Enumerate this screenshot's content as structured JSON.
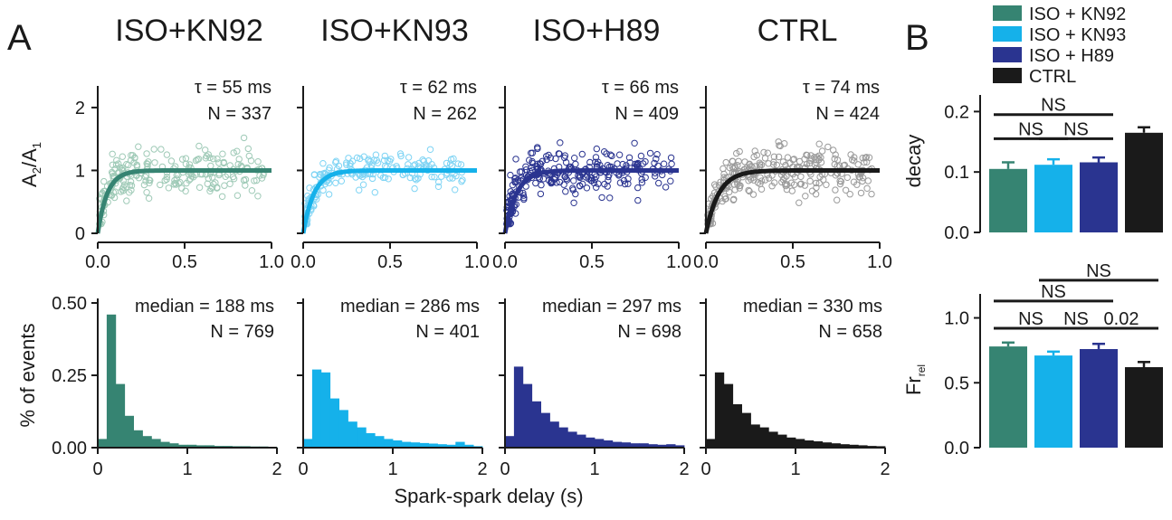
{
  "panel_letters": {
    "a": "A",
    "b": "B"
  },
  "xlabel_shared": "Spark-spark delay (s)",
  "colors": {
    "ISO + KN92": "#368472",
    "ISO + KN93": "#15b1ea",
    "ISO + H89": "#2a3490",
    "CTRL": "#1a1a1a",
    "ISO + KN92_light": "#9fcab7",
    "ISO + KN93_light": "#7fd4f4",
    "ISO + H89_light": "#2a3490",
    "CTRL_light": "#9a9a9a"
  },
  "legend": [
    "ISO + KN92",
    "ISO + KN93",
    "ISO + H89",
    "CTRL"
  ],
  "chart_data": [
    {
      "id": "recovery",
      "type": "scatter",
      "ylabel_main": "A",
      "ylabel_sub1": "2",
      "ylabel_mid": "/A",
      "ylabel_sub2": "1",
      "xlim": [
        0,
        1
      ],
      "ylim": [
        0,
        2.2
      ],
      "xticks": [
        "0.0",
        "0.5",
        "1.0"
      ],
      "yticks": [
        "0",
        "1",
        "2"
      ],
      "panels": [
        {
          "title": "ISO+KN92",
          "series": "ISO + KN92",
          "tau_text": "τ = 55 ms",
          "n_text": "N = 337",
          "tau_s": 0.055
        },
        {
          "title": "ISO+KN93",
          "series": "ISO + KN93",
          "tau_text": "τ = 62 ms",
          "n_text": "N = 262",
          "tau_s": 0.062
        },
        {
          "title": "ISO+H89",
          "series": "ISO + H89",
          "tau_text": "τ = 66 ms",
          "n_text": "N = 409",
          "tau_s": 0.066
        },
        {
          "title": "CTRL",
          "series": "CTRL",
          "tau_text": "τ = 74 ms",
          "n_text": "N = 424",
          "tau_s": 0.074
        }
      ]
    },
    {
      "id": "histogram",
      "type": "bar",
      "ylabel": "% of events",
      "xlim": [
        0,
        2
      ],
      "ylim": [
        0,
        0.5
      ],
      "xticks": [
        "0",
        "1",
        "2"
      ],
      "yticks": [
        "0.00",
        "0.25",
        "0.50"
      ],
      "bin_width_s": 0.1,
      "panels": [
        {
          "series": "ISO + KN92",
          "median_text": "median = 188 ms",
          "n_text": "N = 769",
          "values": [
            0.03,
            0.46,
            0.22,
            0.11,
            0.06,
            0.04,
            0.03,
            0.02,
            0.015,
            0.01,
            0.01,
            0.008,
            0.008,
            0.006,
            0.006,
            0.005,
            0.005,
            0.004,
            0.004,
            0.003
          ]
        },
        {
          "series": "ISO + KN93",
          "median_text": "median = 286 ms",
          "n_text": "N = 401",
          "values": [
            0.03,
            0.27,
            0.26,
            0.17,
            0.13,
            0.09,
            0.07,
            0.05,
            0.04,
            0.03,
            0.025,
            0.02,
            0.018,
            0.016,
            0.014,
            0.012,
            0.01,
            0.02,
            0.01,
            0.005
          ]
        },
        {
          "series": "ISO + H89",
          "median_text": "median = 297 ms",
          "n_text": "N = 698",
          "values": [
            0.04,
            0.28,
            0.22,
            0.16,
            0.12,
            0.09,
            0.07,
            0.055,
            0.045,
            0.035,
            0.03,
            0.025,
            0.02,
            0.018,
            0.015,
            0.015,
            0.012,
            0.01,
            0.012,
            0.008
          ]
        },
        {
          "series": "CTRL",
          "median_text": "median = 330 ms",
          "n_text": "N = 658",
          "values": [
            0.03,
            0.26,
            0.22,
            0.15,
            0.12,
            0.08,
            0.07,
            0.055,
            0.045,
            0.035,
            0.03,
            0.025,
            0.022,
            0.018,
            0.015,
            0.012,
            0.01,
            0.008,
            0.006,
            0.005
          ]
        }
      ]
    },
    {
      "id": "decay",
      "type": "bar",
      "ylabel": "decay",
      "ylim": [
        0,
        0.22
      ],
      "yticks": [
        "0.0",
        "0.1",
        "0.2"
      ],
      "categories": [
        "ISO + KN92",
        "ISO + KN93",
        "ISO + H89",
        "CTRL"
      ],
      "values": [
        0.105,
        0.112,
        0.116,
        0.165
      ],
      "errors": [
        0.011,
        0.009,
        0.008,
        0.009
      ],
      "significance": [
        {
          "from": 0,
          "to": 2,
          "label": "NS",
          "level_y": 0.195
        },
        {
          "from": 0,
          "to": 1,
          "label": "NS",
          "level_y": 0.155
        },
        {
          "from": 1,
          "to": 2,
          "label": "NS",
          "level_y": 0.155
        }
      ]
    },
    {
      "id": "frrel",
      "type": "bar",
      "ylabel_main": "Fr",
      "ylabel_sub": "rel",
      "ylim": [
        0,
        1.15
      ],
      "yticks": [
        "0.0",
        "0.5",
        "1.0"
      ],
      "categories": [
        "ISO + KN92",
        "ISO + KN93",
        "ISO + H89",
        "CTRL"
      ],
      "values": [
        0.78,
        0.71,
        0.76,
        0.62
      ],
      "errors": [
        0.03,
        0.03,
        0.04,
        0.04
      ],
      "significance": [
        {
          "from": 1,
          "to": 3,
          "label": "NS",
          "level_y": 1.29
        },
        {
          "from": 0,
          "to": 2,
          "label": "NS",
          "level_y": 1.13
        },
        {
          "from": 0,
          "to": 1,
          "label": "NS",
          "level_y": 0.92
        },
        {
          "from": 1,
          "to": 2,
          "label": "NS",
          "level_y": 0.92
        },
        {
          "from": 2,
          "to": 3,
          "label": "0.02",
          "level_y": 0.92
        }
      ]
    }
  ]
}
